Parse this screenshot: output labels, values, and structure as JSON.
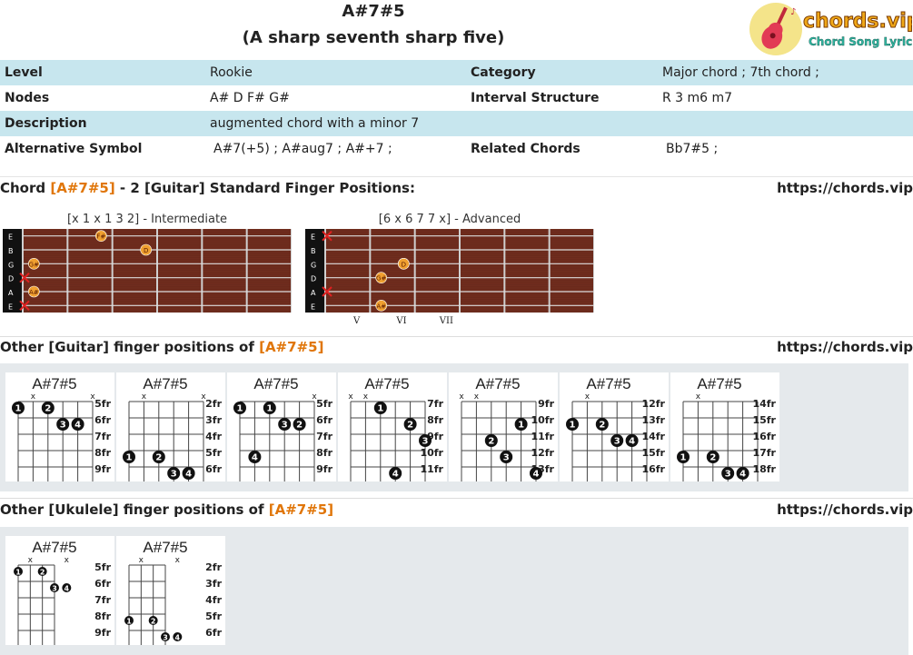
{
  "title": "A#7#5",
  "subtitle": "(A sharp seventh sharp five)",
  "logo": {
    "brand": "chords.vip",
    "tagline": "Chord Song Lyric"
  },
  "info": {
    "level_label": "Level",
    "level": "Rookie",
    "category_label": "Category",
    "category": "Major chord ; 7th chord ;",
    "nodes_label": "Nodes",
    "nodes": "A# D F# G#",
    "interval_label": "Interval Structure",
    "interval": "R 3 m6 m7",
    "description_label": "Description",
    "description": "augmented chord with a minor 7",
    "alt_label": "Alternative Symbol",
    "alt": "A#7(+5) ; A#aug7 ; A#+7 ;",
    "related_label": "Related Chords",
    "related": "Bb7#5 ;"
  },
  "section1": {
    "prefix": "Chord ",
    "chord": "[A#7#5]",
    "suffix": " - 2 [Guitar] Standard Finger Positions:",
    "url": "https://chords.vip"
  },
  "fretboards": [
    {
      "caption": "[x 1 x 1 3 2] - Intermediate",
      "strings": [
        "E",
        "B",
        "G",
        "D",
        "A",
        "E"
      ],
      "fret_numbers": [],
      "dots": [
        {
          "s": 0,
          "f": 4,
          "n": "F#"
        },
        {
          "s": 1,
          "f": 6,
          "n": "D"
        },
        {
          "s": 2,
          "f": 1,
          "n": "G#"
        },
        {
          "s": 4,
          "f": 1,
          "n": "A#"
        }
      ],
      "mutes": [
        3,
        5
      ],
      "open_mutes_left": true
    },
    {
      "caption": "[6 x 6 7 7 x] - Advanced",
      "strings": [
        "E",
        "B",
        "G",
        "D",
        "A",
        "E"
      ],
      "fret_numbers": [
        "V",
        "VI",
        "VII"
      ],
      "dots": [
        {
          "s": 2,
          "f": 7,
          "n": "F#"
        },
        {
          "s": 2,
          "f": 7,
          "n": "D"
        },
        {
          "s": 3,
          "f": 6,
          "n": "G#"
        },
        {
          "s": 5,
          "f": 6,
          "n": "A#"
        }
      ],
      "mutes": [
        0,
        4
      ]
    }
  ],
  "section2": {
    "prefix": "Other [Guitar] finger positions of ",
    "chord": "[A#7#5]",
    "url": "https://chords.vip"
  },
  "guitar_diagrams": [
    {
      "name": "A#7#5",
      "frets": [
        "5fr",
        "6fr",
        "7fr",
        "8fr",
        "9fr"
      ],
      "x_marks": [
        1,
        5
      ],
      "dots": [
        {
          "s": 0,
          "f": 0,
          "n": "1"
        },
        {
          "s": 2,
          "f": 0,
          "n": "2"
        },
        {
          "s": 3,
          "f": 1,
          "n": "3"
        },
        {
          "s": 4,
          "f": 1,
          "n": "4"
        }
      ]
    },
    {
      "name": "A#7#5",
      "frets": [
        "2fr",
        "3fr",
        "4fr",
        "5fr",
        "6fr"
      ],
      "x_marks": [
        1,
        5
      ],
      "dots": [
        {
          "s": 0,
          "f": 3,
          "n": "1"
        },
        {
          "s": 2,
          "f": 3,
          "n": "2"
        },
        {
          "s": 3,
          "f": 4,
          "n": "3"
        },
        {
          "s": 4,
          "f": 4,
          "n": "4"
        }
      ]
    },
    {
      "name": "A#7#5",
      "frets": [
        "5fr",
        "6fr",
        "7fr",
        "8fr",
        "9fr"
      ],
      "x_marks": [
        5
      ],
      "dots": [
        {
          "s": 0,
          "f": 0,
          "n": "1"
        },
        {
          "s": 2,
          "f": 0,
          "n": "1"
        },
        {
          "s": 3,
          "f": 1,
          "n": "3"
        },
        {
          "s": 4,
          "f": 1,
          "n": "2"
        },
        {
          "s": 1,
          "f": 3,
          "n": "4"
        }
      ]
    },
    {
      "name": "A#7#5",
      "frets": [
        "7fr",
        "8fr",
        "9fr",
        "10fr",
        "11fr"
      ],
      "x_marks": [
        0,
        1
      ],
      "dots": [
        {
          "s": 2,
          "f": 0,
          "n": "1"
        },
        {
          "s": 4,
          "f": 1,
          "n": "2"
        },
        {
          "s": 5,
          "f": 2,
          "n": "3"
        },
        {
          "s": 3,
          "f": 4,
          "n": "4"
        }
      ]
    },
    {
      "name": "A#7#5",
      "frets": [
        "9fr",
        "10fr",
        "11fr",
        "12fr",
        "13fr"
      ],
      "x_marks": [
        0,
        1
      ],
      "dots": [
        {
          "s": 4,
          "f": 1,
          "n": "1"
        },
        {
          "s": 2,
          "f": 2,
          "n": "2"
        },
        {
          "s": 3,
          "f": 3,
          "n": "3"
        },
        {
          "s": 5,
          "f": 4,
          "n": "4"
        }
      ]
    },
    {
      "name": "A#7#5",
      "frets": [
        "12fr",
        "13fr",
        "14fr",
        "15fr",
        "16fr"
      ],
      "x_marks": [
        1
      ],
      "dots": [
        {
          "s": 0,
          "f": 1,
          "n": "1"
        },
        {
          "s": 2,
          "f": 1,
          "n": "2"
        },
        {
          "s": 3,
          "f": 2,
          "n": "3"
        },
        {
          "s": 4,
          "f": 2,
          "n": "4"
        }
      ]
    },
    {
      "name": "A#7#5",
      "frets": [
        "14fr",
        "15fr",
        "16fr",
        "17fr",
        "18fr"
      ],
      "x_marks": [
        1
      ],
      "dots": [
        {
          "s": 0,
          "f": 3,
          "n": "1"
        },
        {
          "s": 2,
          "f": 3,
          "n": "2"
        },
        {
          "s": 3,
          "f": 4,
          "n": "3"
        },
        {
          "s": 4,
          "f": 4,
          "n": "4"
        }
      ]
    }
  ],
  "section3": {
    "prefix": "Other [Ukulele] finger positions of ",
    "chord": "[A#7#5]",
    "url": "https://chords.vip"
  },
  "ukulele_diagrams": [
    {
      "name": "A#7#5",
      "frets": [
        "5fr",
        "6fr",
        "7fr",
        "8fr",
        "9fr"
      ],
      "x_marks": [
        1,
        4
      ],
      "dots": [
        {
          "s": 0,
          "f": 0,
          "n": "1"
        },
        {
          "s": 2,
          "f": 0,
          "n": "2"
        },
        {
          "s": 3,
          "f": 1,
          "n": "3"
        },
        {
          "s": 4,
          "f": 1,
          "n": "4"
        }
      ]
    },
    {
      "name": "A#7#5",
      "frets": [
        "2fr",
        "3fr",
        "4fr",
        "5fr",
        "6fr"
      ],
      "x_marks": [
        1,
        4
      ],
      "dots": [
        {
          "s": 0,
          "f": 3,
          "n": "1"
        },
        {
          "s": 2,
          "f": 3,
          "n": "2"
        },
        {
          "s": 3,
          "f": 4,
          "n": "3"
        },
        {
          "s": 4,
          "f": 4,
          "n": "4"
        }
      ]
    }
  ],
  "colors": {
    "accent": "#e0760a",
    "info_row": "#c7e6ee",
    "panel": "#e5e9ec",
    "fret_wood": "#6a2a1c",
    "dot": "#f0a030",
    "mute": "#e02020"
  }
}
